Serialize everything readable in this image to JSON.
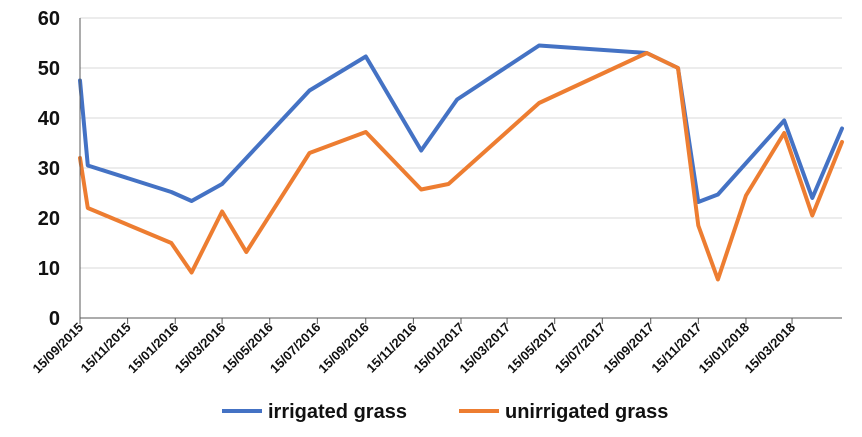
{
  "chart_data": {
    "type": "line",
    "title": "",
    "xlabel": "",
    "ylabel": "",
    "ylim": [
      0,
      60
    ],
    "y_ticks": [
      0,
      10,
      20,
      30,
      40,
      50,
      60
    ],
    "x_axis_type": "date",
    "x_range": [
      "2015-09-15",
      "2018-05-18"
    ],
    "x_ticks": [
      {
        "date": "2015-09-15",
        "label": "15/09/2015"
      },
      {
        "date": "2015-11-15",
        "label": "15/11/2015"
      },
      {
        "date": "2016-01-15",
        "label": "15/01/2016"
      },
      {
        "date": "2016-03-15",
        "label": "15/03/2016"
      },
      {
        "date": "2016-05-15",
        "label": "15/05/2016"
      },
      {
        "date": "2016-07-15",
        "label": "15/07/2016"
      },
      {
        "date": "2016-09-15",
        "label": "15/09/2016"
      },
      {
        "date": "2016-11-15",
        "label": "15/11/2016"
      },
      {
        "date": "2017-01-15",
        "label": "15/01/2017"
      },
      {
        "date": "2017-03-15",
        "label": "15/03/2017"
      },
      {
        "date": "2017-05-15",
        "label": "15/05/2017"
      },
      {
        "date": "2017-07-15",
        "label": "15/07/2017"
      },
      {
        "date": "2017-09-15",
        "label": "15/09/2017"
      },
      {
        "date": "2017-11-15",
        "label": "15/11/2017"
      },
      {
        "date": "2018-01-15",
        "label": "15/01/2018"
      },
      {
        "date": "2018-03-15",
        "label": "15/03/2018"
      }
    ],
    "grid": "horizontal",
    "legend_position": "bottom",
    "series": [
      {
        "name": "irrigated grass",
        "color": "#4472C4",
        "points": [
          {
            "x": "2015-09-15",
            "y": 47.5
          },
          {
            "x": "2015-09-25",
            "y": 30.5
          },
          {
            "x": "2016-01-10",
            "y": 25.2
          },
          {
            "x": "2016-02-05",
            "y": 23.4
          },
          {
            "x": "2016-03-15",
            "y": 26.8
          },
          {
            "x": "2016-07-05",
            "y": 45.5
          },
          {
            "x": "2016-09-15",
            "y": 52.3
          },
          {
            "x": "2016-11-25",
            "y": 33.5
          },
          {
            "x": "2017-01-10",
            "y": 43.7
          },
          {
            "x": "2017-04-25",
            "y": 54.5
          },
          {
            "x": "2017-09-10",
            "y": 53.0
          },
          {
            "x": "2017-10-20",
            "y": 50.0
          },
          {
            "x": "2017-11-15",
            "y": 23.2
          },
          {
            "x": "2017-12-10",
            "y": 24.7
          },
          {
            "x": "2018-03-05",
            "y": 39.5
          },
          {
            "x": "2018-04-10",
            "y": 24.0
          },
          {
            "x": "2018-05-18",
            "y": 37.9
          }
        ]
      },
      {
        "name": "unirrigated grass",
        "color": "#ED7D31",
        "points": [
          {
            "x": "2015-09-15",
            "y": 32.0
          },
          {
            "x": "2015-09-25",
            "y": 22.0
          },
          {
            "x": "2016-01-10",
            "y": 15.0
          },
          {
            "x": "2016-02-05",
            "y": 9.1
          },
          {
            "x": "2016-03-15",
            "y": 21.3
          },
          {
            "x": "2016-04-15",
            "y": 13.2
          },
          {
            "x": "2016-07-05",
            "y": 33.0
          },
          {
            "x": "2016-09-15",
            "y": 37.2
          },
          {
            "x": "2016-11-25",
            "y": 25.7
          },
          {
            "x": "2016-12-30",
            "y": 26.8
          },
          {
            "x": "2017-04-25",
            "y": 43.0
          },
          {
            "x": "2017-09-10",
            "y": 53.0
          },
          {
            "x": "2017-10-20",
            "y": 50.0
          },
          {
            "x": "2017-11-15",
            "y": 18.5
          },
          {
            "x": "2017-12-10",
            "y": 7.7
          },
          {
            "x": "2018-01-15",
            "y": 24.5
          },
          {
            "x": "2018-03-05",
            "y": 37.0
          },
          {
            "x": "2018-04-10",
            "y": 20.5
          },
          {
            "x": "2018-05-18",
            "y": 35.2
          }
        ]
      }
    ]
  }
}
